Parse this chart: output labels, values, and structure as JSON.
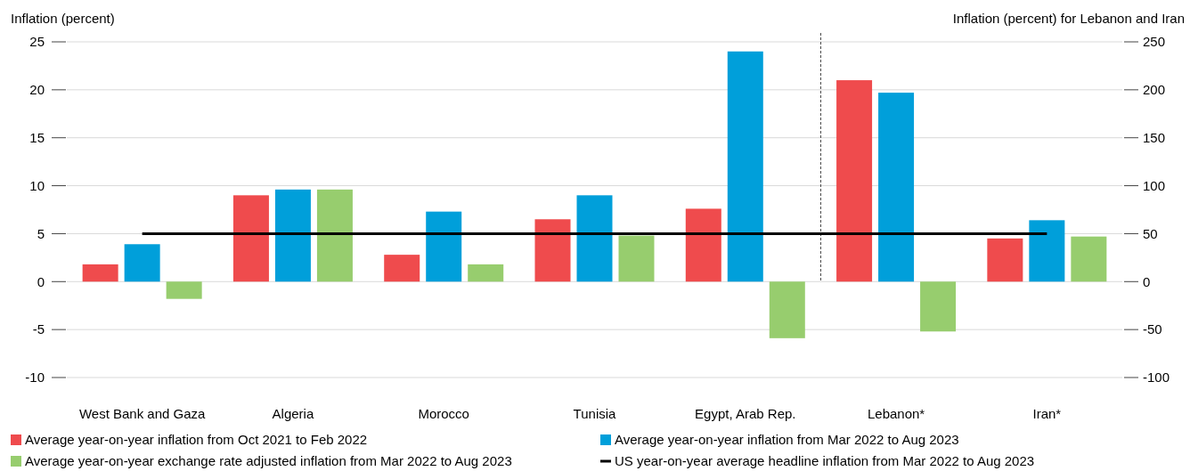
{
  "chart_data": {
    "type": "bar",
    "ylabel": "Inflation (percent)",
    "y2label": "Inflation (percent) for Lebanon and Iran",
    "categories": [
      "West Bank and Gaza",
      "Algeria",
      "Morocco",
      "Tunisia",
      "Egypt, Arab Rep.",
      "Lebanon*",
      "Iran*"
    ],
    "series": [
      {
        "name": "Average year-on-year inflation from Oct 2021 to Feb 2022",
        "color": "#ef4b4d",
        "values": [
          1.8,
          9.0,
          2.8,
          6.5,
          7.6,
          null,
          null
        ]
      },
      {
        "name": "Average year-on-year inflation from Mar 2022 to Aug 2023",
        "color": "#009fda",
        "values": [
          3.9,
          9.6,
          7.3,
          9.0,
          24.0,
          null,
          null
        ]
      },
      {
        "name": "Average year-on-year exchange rate adjusted inflation from Mar 2022 to Aug 2023",
        "color": "#97cd6e",
        "values": [
          -1.8,
          9.6,
          1.8,
          4.8,
          -5.9,
          null,
          null
        ]
      },
      {
        "color": "#ef4b4d",
        "axis": "y2",
        "values": [
          null,
          null,
          null,
          null,
          null,
          210,
          45
        ]
      },
      {
        "color": "#009fda",
        "axis": "y2",
        "values": [
          null,
          null,
          null,
          null,
          null,
          197,
          64
        ]
      },
      {
        "color": "#97cd6e",
        "axis": "y2",
        "values": [
          null,
          null,
          null,
          null,
          null,
          -52,
          47
        ]
      },
      {
        "name": "US year-on-year average headline inflation from Mar 2022 to Aug 2023",
        "type": "line",
        "color": "#000000",
        "values": [
          5,
          5,
          5,
          5,
          5,
          5,
          5
        ]
      }
    ],
    "ylim": [
      -10,
      25
    ],
    "yticks": [
      -10,
      -5,
      0,
      5,
      10,
      15,
      20,
      25
    ],
    "y2lim": [
      -100,
      250
    ],
    "y2ticks": [
      -100,
      -50,
      0,
      50,
      100,
      150,
      200,
      250
    ],
    "grid": "y",
    "legend": "bottom"
  }
}
